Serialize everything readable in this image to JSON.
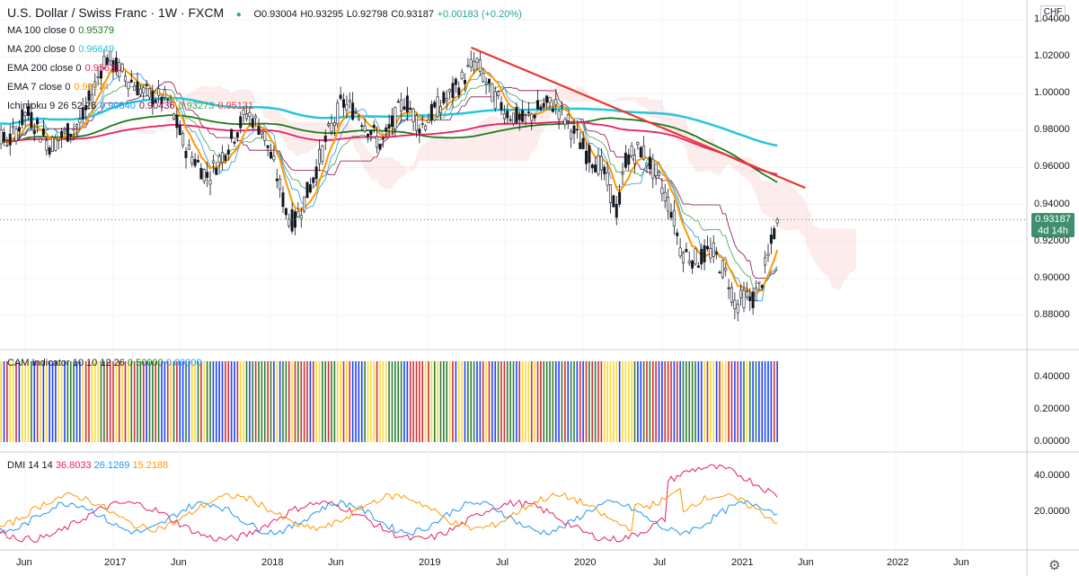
{
  "header": {
    "title": "U.S. Dollar / Swiss Franc · 1W · FXCM",
    "open": "O0.93004",
    "high": "H0.93295",
    "low": "L0.92798",
    "close": "C0.93187",
    "change": "+0.00183 (+0.20%)"
  },
  "currency_badge": "CHF",
  "indicators": [
    {
      "name": "MA 100 close 0",
      "values": [
        "0.95379"
      ],
      "colors": [
        "#1b7a1b"
      ]
    },
    {
      "name": "MA 200 close 0",
      "values": [
        "0.96649"
      ],
      "colors": [
        "#26c6da"
      ]
    },
    {
      "name": "EMA 200 close 0",
      "values": [
        "0.95631"
      ],
      "colors": [
        "#e91e63"
      ]
    },
    {
      "name": "EMA 7 close 0",
      "values": [
        "0.91174"
      ],
      "colors": [
        "#ff9800"
      ]
    },
    {
      "name": "Ichimoku 9 26 52 26",
      "values": [
        "0.90840",
        "0.90436",
        "0.93273",
        "0.95131"
      ],
      "colors": [
        "#2196f3",
        "#880e4f",
        "#43a047",
        "#e53935"
      ]
    }
  ],
  "cam": {
    "name": "CAM Indicator 10 10 12 26",
    "values": [
      "0.50000",
      "0.00000"
    ],
    "colors": [
      "#1b7a1b",
      "#2196f3"
    ]
  },
  "dmi": {
    "name": "DMI 14 14",
    "values": [
      "36.8033",
      "26.1269",
      "15.2188"
    ],
    "colors": [
      "#e91e63",
      "#2196f3",
      "#ff9800"
    ]
  },
  "current_price": {
    "value": "0.93187",
    "countdown": "4d 14h"
  },
  "chart_data": {
    "type": "candlestick",
    "symbol": "USDCHF",
    "timeframe": "1W",
    "price_axis": {
      "ticks": [
        "1.04000",
        "1.02000",
        "1.00000",
        "0.98000",
        "0.96000",
        "0.94000",
        "0.92000",
        "0.90000",
        "0.88000"
      ],
      "ylim": [
        0.862,
        1.04
      ]
    },
    "cam_axis": {
      "ticks": [
        "0.40000",
        "0.20000",
        "0.00000"
      ]
    },
    "dmi_axis": {
      "ticks": [
        "40.0000",
        "20.0000"
      ]
    },
    "time_axis": {
      "labels": [
        "Jun",
        "2017",
        "Jun",
        "2018",
        "Jun",
        "2019",
        "Jul",
        "2020",
        "Jul",
        "2021",
        "Jun",
        "2022",
        "Jun"
      ]
    },
    "price_path": [
      [
        2016.35,
        0.975
      ],
      [
        2016.45,
        0.99
      ],
      [
        2016.6,
        0.972
      ],
      [
        2016.8,
        0.985
      ],
      [
        2016.95,
        1.02
      ],
      [
        2017.05,
        1.012
      ],
      [
        2017.2,
        1.0
      ],
      [
        2017.35,
        0.996
      ],
      [
        2017.45,
        0.972
      ],
      [
        2017.6,
        0.955
      ],
      [
        2017.7,
        0.968
      ],
      [
        2017.85,
        0.99
      ],
      [
        2017.95,
        0.98
      ],
      [
        2018.05,
        0.952
      ],
      [
        2018.1,
        0.935
      ],
      [
        2018.15,
        0.93
      ],
      [
        2018.25,
        0.95
      ],
      [
        2018.35,
        0.975
      ],
      [
        2018.45,
        0.995
      ],
      [
        2018.55,
        0.99
      ],
      [
        2018.7,
        0.972
      ],
      [
        2018.85,
        0.997
      ],
      [
        2018.95,
        0.982
      ],
      [
        2019.05,
        0.992
      ],
      [
        2019.15,
        1.0
      ],
      [
        2019.25,
        1.012
      ],
      [
        2019.3,
        1.018
      ],
      [
        2019.4,
        1.0
      ],
      [
        2019.5,
        0.99
      ],
      [
        2019.6,
        0.985
      ],
      [
        2019.7,
        0.992
      ],
      [
        2019.8,
        0.995
      ],
      [
        2019.9,
        0.982
      ],
      [
        2020.0,
        0.968
      ],
      [
        2020.1,
        0.96
      ],
      [
        2020.2,
        0.935
      ],
      [
        2020.25,
        0.965
      ],
      [
        2020.35,
        0.97
      ],
      [
        2020.45,
        0.955
      ],
      [
        2020.55,
        0.935
      ],
      [
        2020.6,
        0.915
      ],
      [
        2020.7,
        0.91
      ],
      [
        2020.8,
        0.915
      ],
      [
        2020.9,
        0.9
      ],
      [
        2020.95,
        0.885
      ],
      [
        2021.0,
        0.89
      ],
      [
        2021.05,
        0.888
      ],
      [
        2021.1,
        0.895
      ],
      [
        2021.15,
        0.91
      ],
      [
        2021.2,
        0.928
      ],
      [
        2021.22,
        0.93187
      ]
    ],
    "trendline": [
      [
        2019.27,
        1.025
      ],
      [
        2021.39,
        0.949
      ]
    ]
  }
}
